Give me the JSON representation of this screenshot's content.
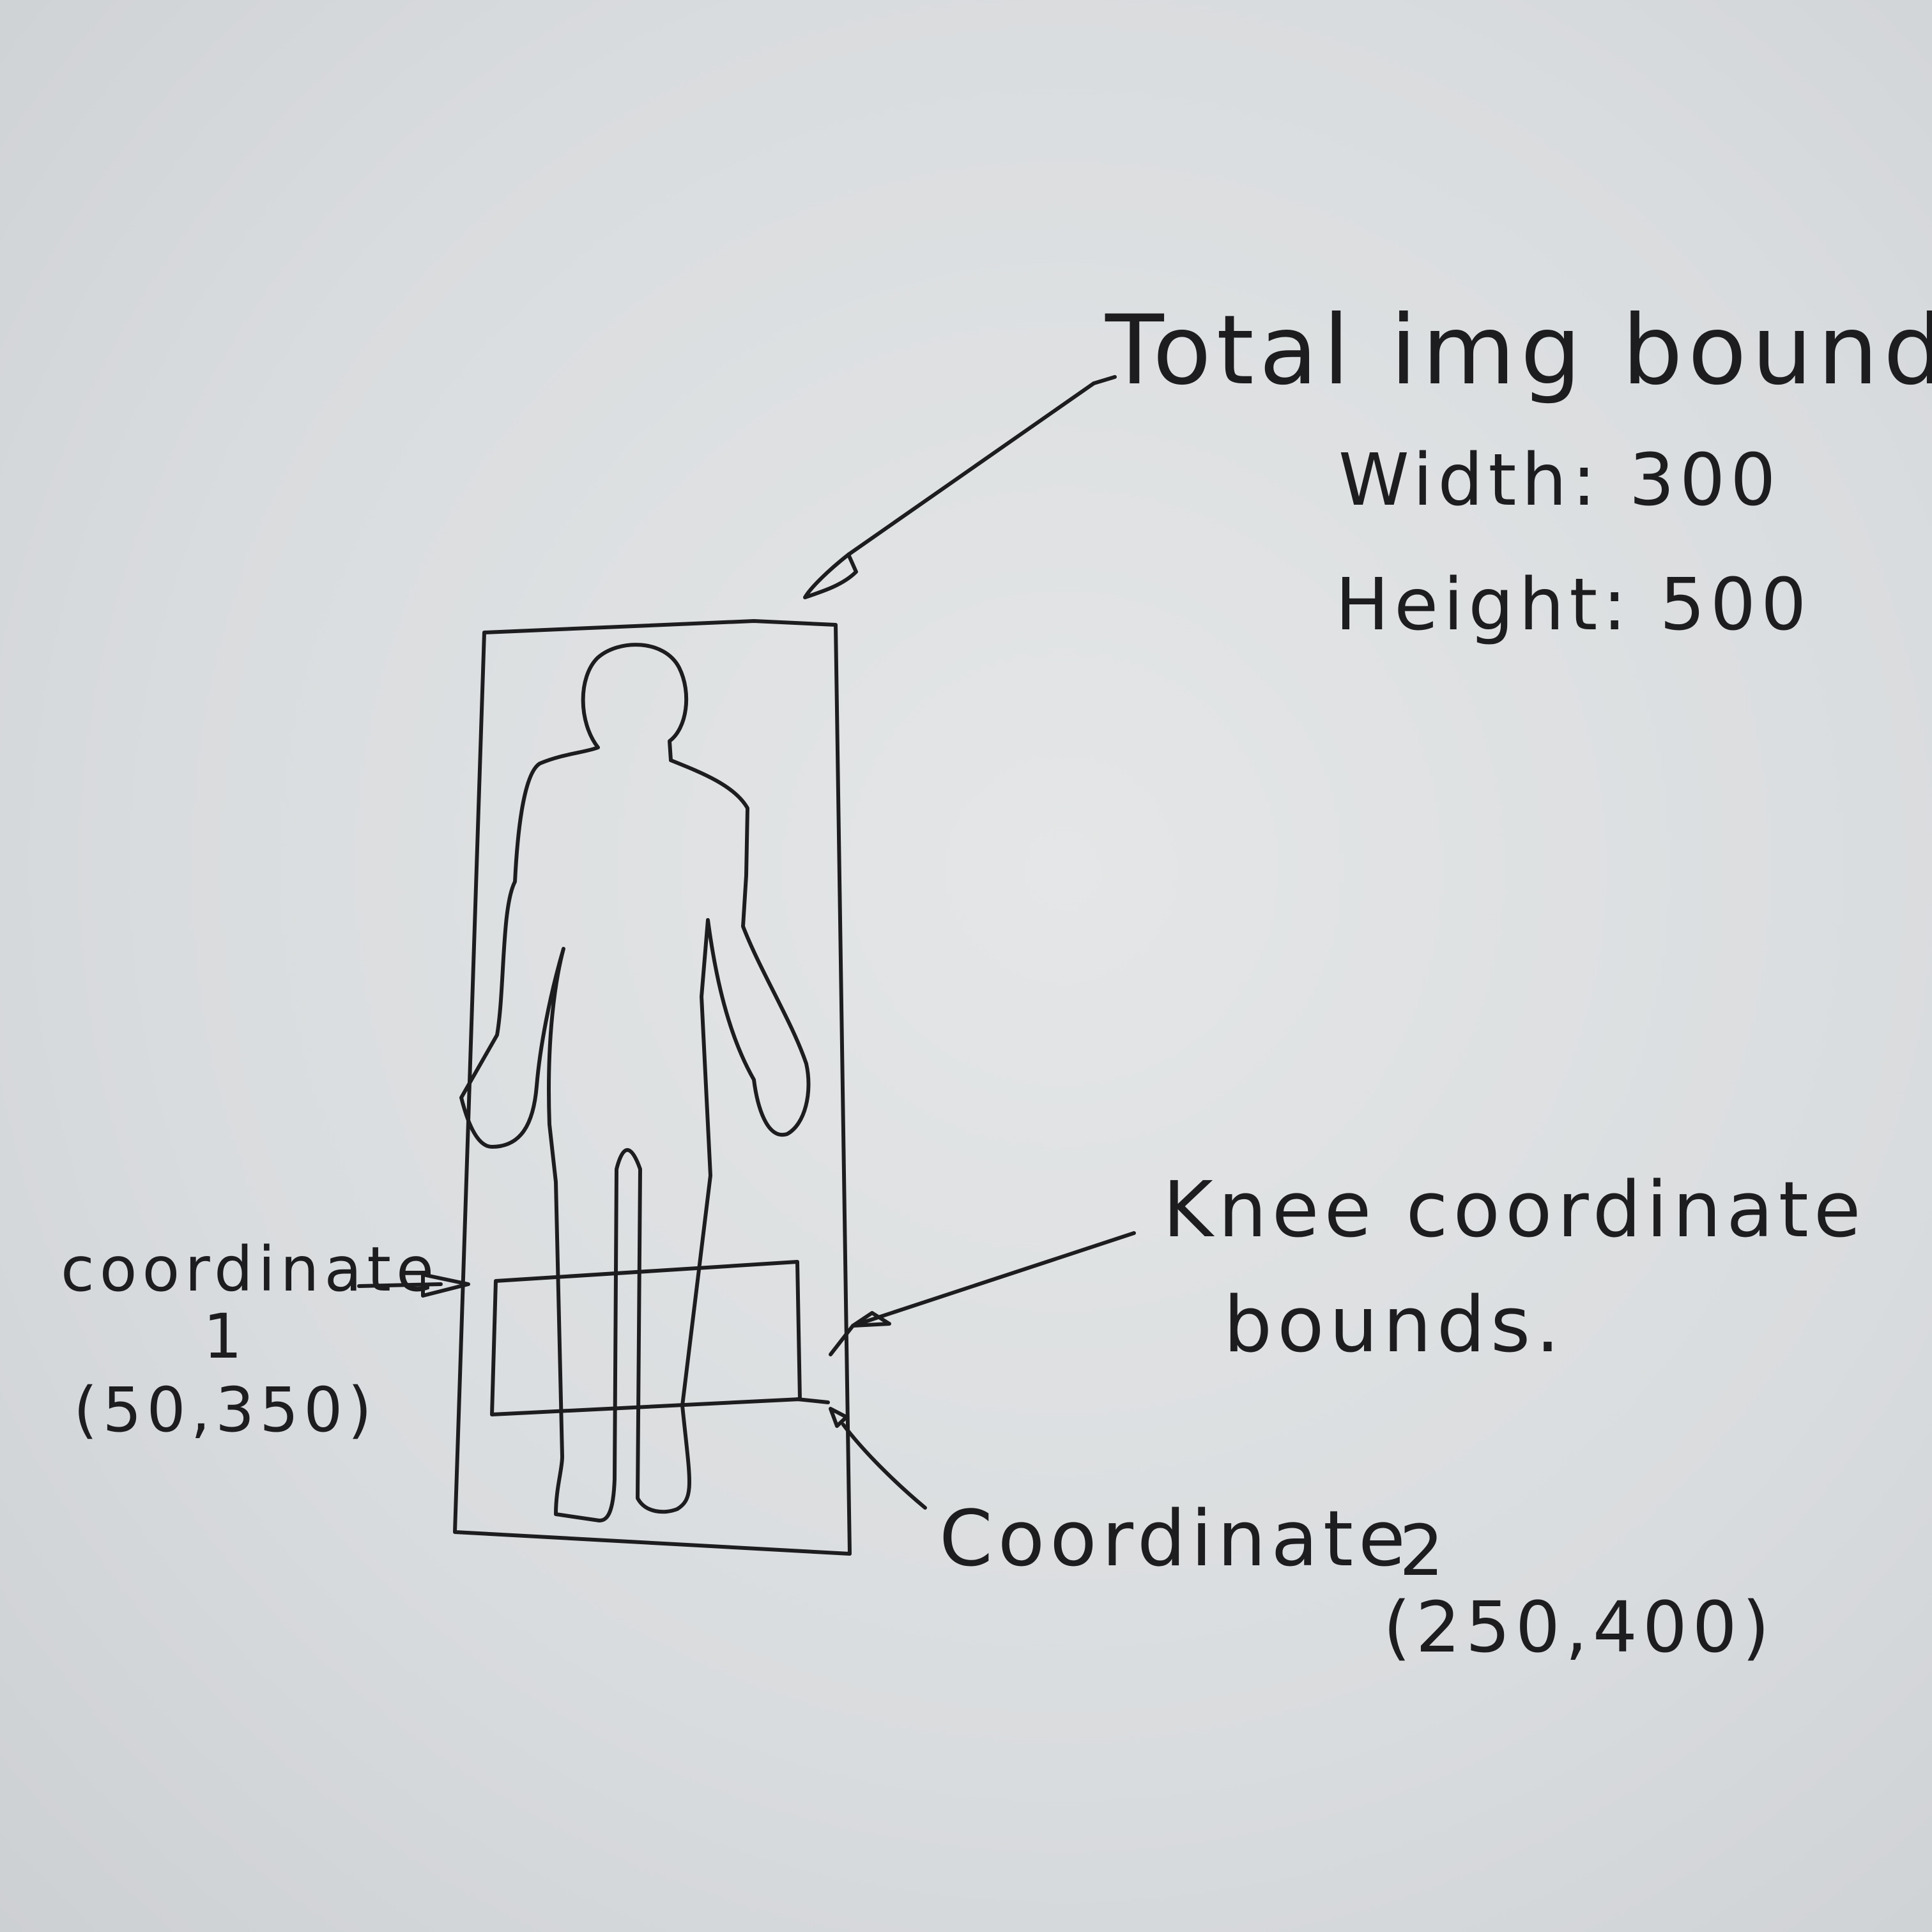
{
  "total_bounds": {
    "title": "Total img bounds",
    "width_line": "Width: 300",
    "height_line": "Height: 500"
  },
  "knee_bounds": {
    "label_line1": "Knee coordinate",
    "label_line2": "bounds."
  },
  "coordinate_1": {
    "label": "coordinate",
    "number": "1",
    "value": "(50,350)"
  },
  "coordinate_2": {
    "label": "Coordinate",
    "number": "2",
    "value": "(250,400)"
  }
}
